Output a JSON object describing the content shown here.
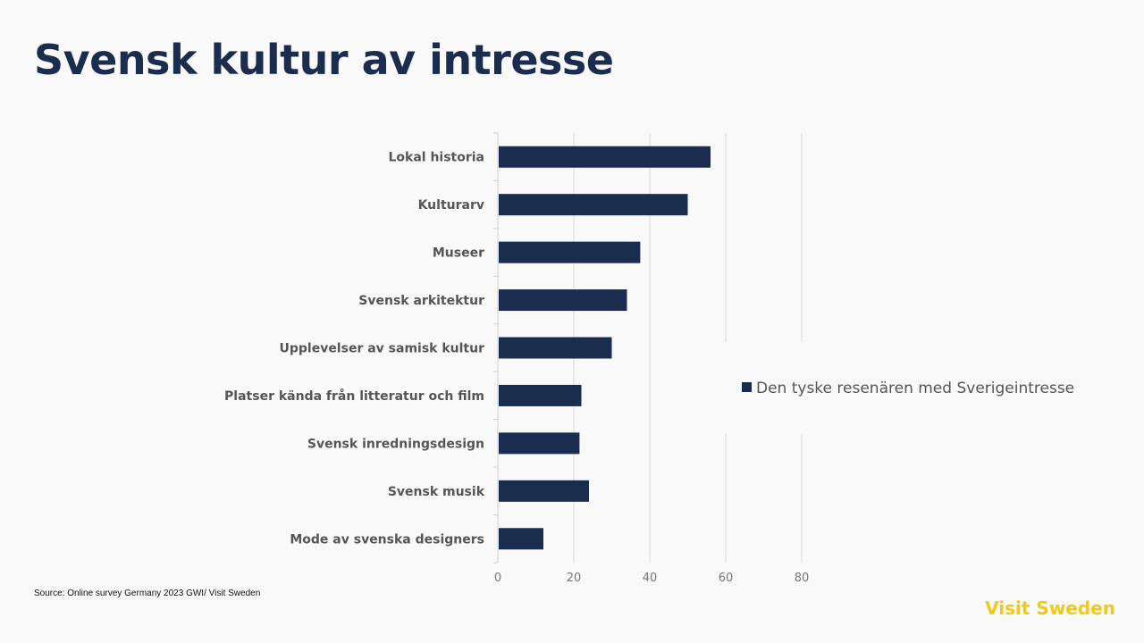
{
  "title": "Svensk kultur av intresse",
  "source": "Source: Online survey Germany 2023 GWI/ Visit Sweden",
  "brand": "Visit Sweden",
  "colors": {
    "bar": "#1b2d4f",
    "title": "#1b2d4f",
    "brand": "#f2c913",
    "grid": "#d9d9d9"
  },
  "chart_data": {
    "type": "bar",
    "orientation": "horizontal",
    "categories": [
      "Lokal historia",
      "Kulturarv",
      "Museer",
      "Svensk arkitektur",
      "Upplevelser av samisk kultur",
      "Platser kända från litteratur och film",
      "Svensk inredningsdesign",
      "Svensk musik",
      "Mode av svenska designers"
    ],
    "series": [
      {
        "name": "Den tyske resenären med Sverigeintresse",
        "values": [
          56,
          50,
          37.5,
          34,
          30,
          22,
          21.5,
          24,
          12
        ]
      }
    ],
    "xlim": [
      0,
      80
    ],
    "xticks": [
      "0",
      "20",
      "40",
      "60",
      "80"
    ],
    "grid": true,
    "legend": "right"
  }
}
